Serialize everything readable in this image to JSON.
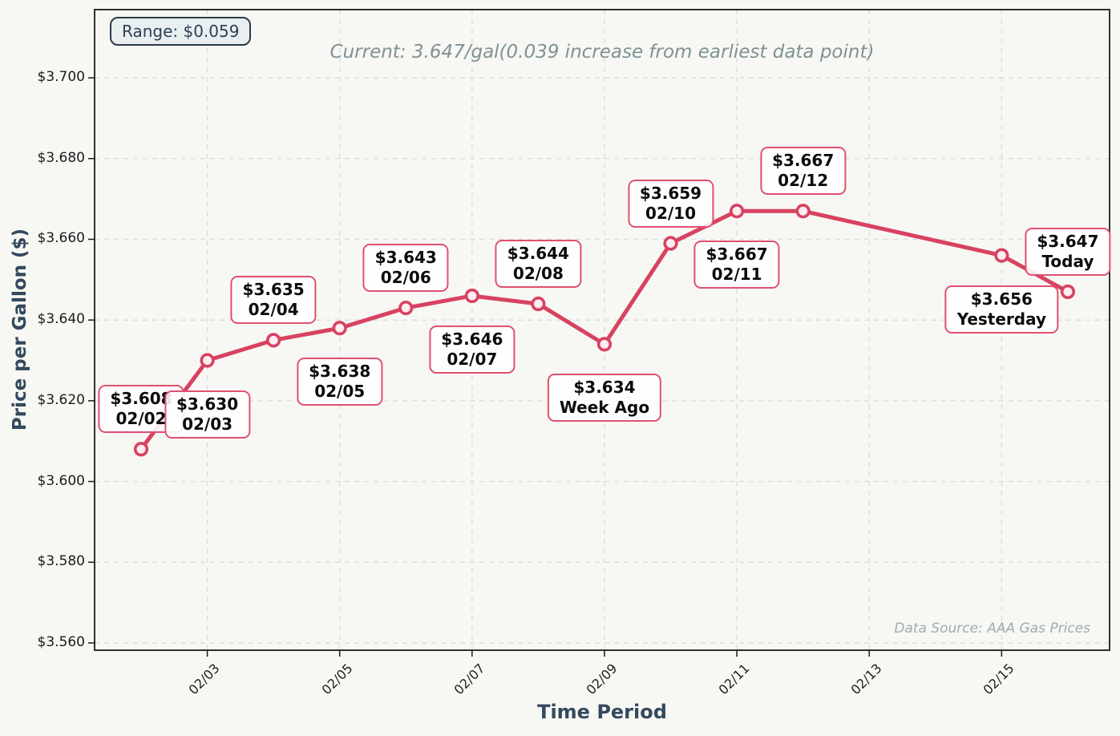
{
  "header": {
    "range_badge": "Range: $0.059"
  },
  "footer": {
    "data_source": "Data Source: AAA Gas Prices"
  },
  "colors": {
    "figure_background": "#f7f7f4",
    "line": "#d84260",
    "marker_fill": "#fcedf0",
    "callout_border": "#e0506e",
    "callout_background": "rgba(255,255,255,0.88)",
    "grid": "#dbdbdb",
    "spine": "#1b1b1b",
    "axis_title": "#33495d",
    "title_text": "#7f9295",
    "badge_background": "#e8edf0",
    "badge_border": "#2c3a48",
    "badge_text": "#2e4050",
    "source_text": "#9fadb0"
  },
  "chart_data": {
    "type": "line",
    "title": "Current: 3.647/gal(0.039 increase from earliest data point)",
    "xlabel": "Time Period",
    "ylabel": "Price per Gallon ($)",
    "grid": true,
    "legend": false,
    "xlim_days": [
      1.2976,
      16.6306
    ],
    "ylim": [
      3.5582,
      3.7169
    ],
    "y_ticks": [
      {
        "value": 3.56,
        "label": "$3.560"
      },
      {
        "value": 3.58,
        "label": "$3.580"
      },
      {
        "value": 3.6,
        "label": "$3.600"
      },
      {
        "value": 3.62,
        "label": "$3.620"
      },
      {
        "value": 3.64,
        "label": "$3.640"
      },
      {
        "value": 3.66,
        "label": "$3.660"
      },
      {
        "value": 3.68,
        "label": "$3.680"
      },
      {
        "value": 3.7,
        "label": "$3.700"
      }
    ],
    "x_ticks": [
      {
        "day": 3,
        "label": "02/03"
      },
      {
        "day": 5,
        "label": "02/05"
      },
      {
        "day": 7,
        "label": "02/07"
      },
      {
        "day": 9,
        "label": "02/09"
      },
      {
        "day": 11,
        "label": "02/11"
      },
      {
        "day": 13,
        "label": "02/13"
      },
      {
        "day": 15,
        "label": "02/15"
      }
    ],
    "series": [
      {
        "name": "Price per Gallon",
        "points": [
          {
            "date": "02/02",
            "day": 2,
            "value": 3.608,
            "price_label": "$3.608",
            "date_label": "02/02",
            "callout": "above"
          },
          {
            "date": "02/03",
            "day": 3,
            "value": 3.63,
            "price_label": "$3.630",
            "date_label": "02/03",
            "callout": "below"
          },
          {
            "date": "02/04",
            "day": 4,
            "value": 3.635,
            "price_label": "$3.635",
            "date_label": "02/04",
            "callout": "above"
          },
          {
            "date": "02/05",
            "day": 5,
            "value": 3.638,
            "price_label": "$3.638",
            "date_label": "02/05",
            "callout": "below"
          },
          {
            "date": "02/06",
            "day": 6,
            "value": 3.643,
            "price_label": "$3.643",
            "date_label": "02/06",
            "callout": "above"
          },
          {
            "date": "02/07",
            "day": 7,
            "value": 3.646,
            "price_label": "$3.646",
            "date_label": "02/07",
            "callout": "below"
          },
          {
            "date": "02/08",
            "day": 8,
            "value": 3.644,
            "price_label": "$3.644",
            "date_label": "02/08",
            "callout": "above"
          },
          {
            "date": "02/09",
            "day": 9,
            "value": 3.634,
            "price_label": "$3.634",
            "date_label": "Week Ago",
            "callout": "below"
          },
          {
            "date": "02/10",
            "day": 10,
            "value": 3.659,
            "price_label": "$3.659",
            "date_label": "02/10",
            "callout": "above"
          },
          {
            "date": "02/11",
            "day": 11,
            "value": 3.667,
            "price_label": "$3.667",
            "date_label": "02/11",
            "callout": "below"
          },
          {
            "date": "02/12",
            "day": 12,
            "value": 3.667,
            "price_label": "$3.667",
            "date_label": "02/12",
            "callout": "above"
          },
          {
            "date": "02/15",
            "day": 15,
            "value": 3.656,
            "price_label": "$3.656",
            "date_label": "Yesterday",
            "callout": "below"
          },
          {
            "date": "02/16",
            "day": 16,
            "value": 3.647,
            "price_label": "$3.647",
            "date_label": "Today",
            "callout": "above"
          }
        ]
      }
    ],
    "annotations": {
      "range": "$0.059",
      "current_price": 3.647,
      "increase_from_earliest": 0.039
    }
  }
}
